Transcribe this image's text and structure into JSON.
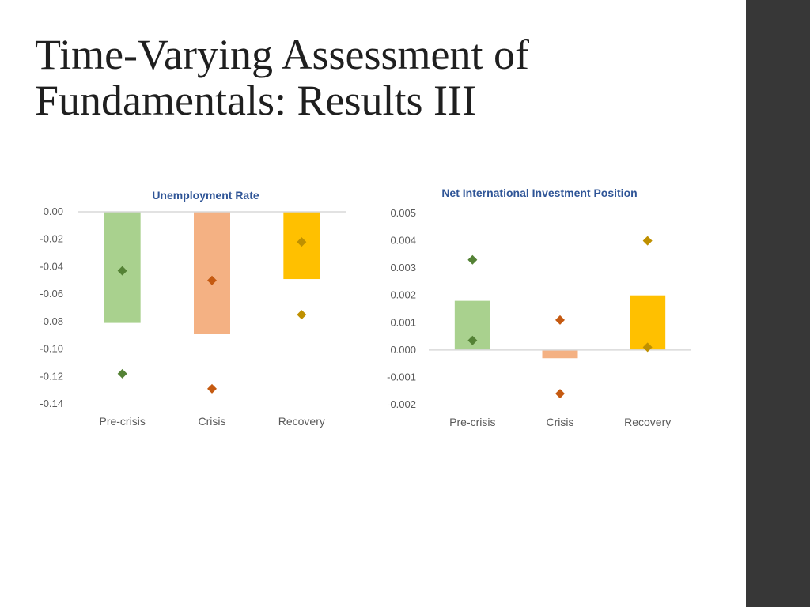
{
  "slide": {
    "title_line1": "Time-Varying Assessment of",
    "title_line2": "Fundamentals: Results III"
  },
  "colors": {
    "sidebar": "#373737",
    "axis": "#d9d9d9",
    "title": "#2f5597",
    "label": "#595959"
  },
  "chart_data": [
    {
      "type": "bar",
      "title": "Unemployment Rate",
      "categories": [
        "Pre-crisis",
        "Crisis",
        "Recovery"
      ],
      "ylim": [
        -0.14,
        0.0
      ],
      "yticks": [
        "0.00",
        "-0.02",
        "-0.04",
        "-0.06",
        "-0.08",
        "-0.10",
        "-0.12",
        "-0.14"
      ],
      "ytick_values": [
        0.0,
        -0.02,
        -0.04,
        -0.06,
        -0.08,
        -0.1,
        -0.12,
        -0.14
      ],
      "grid": false,
      "legend": "none",
      "values": [
        -0.081,
        -0.089,
        -0.049
      ],
      "markers_high": [
        -0.043,
        -0.05,
        -0.022
      ],
      "markers_low": [
        -0.118,
        -0.129,
        -0.075
      ],
      "bar_colors": [
        "#a9d18e",
        "#f4b183",
        "#ffc000"
      ],
      "marker_colors": [
        "#548235",
        "#c55a11",
        "#bf9000"
      ]
    },
    {
      "type": "bar",
      "title": "Net International  Investment Position",
      "categories": [
        "Pre-crisis",
        "Crisis",
        "Recovery"
      ],
      "ylim": [
        -0.002,
        0.005
      ],
      "yticks": [
        "0.005",
        "0.004",
        "0.003",
        "0.002",
        "0.001",
        "0.000",
        "-0.001",
        "-0.002"
      ],
      "ytick_values": [
        0.005,
        0.004,
        0.003,
        0.002,
        0.001,
        0.0,
        -0.001,
        -0.002
      ],
      "grid": false,
      "legend": "none",
      "values": [
        0.0018,
        -0.0003,
        0.002
      ],
      "markers_high": [
        0.0033,
        0.0011,
        0.004
      ],
      "markers_low": [
        0.00035,
        -0.0016,
        0.0001
      ],
      "bar_colors": [
        "#a9d18e",
        "#f4b183",
        "#ffc000"
      ],
      "marker_colors": [
        "#548235",
        "#c55a11",
        "#bf9000"
      ]
    }
  ]
}
